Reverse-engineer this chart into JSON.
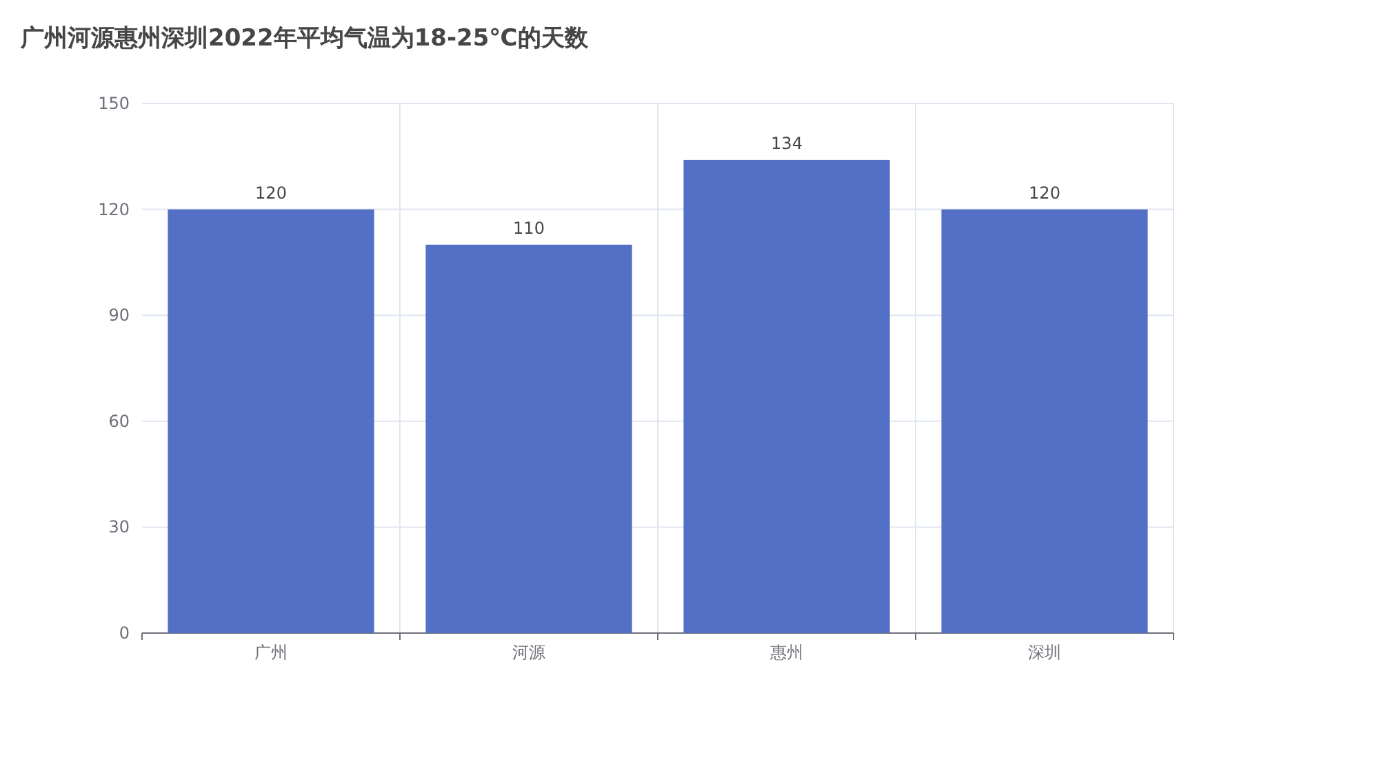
{
  "chart_data": {
    "type": "bar",
    "title": "广州河源惠州深圳2022年平均气温为18-25℃的天数",
    "categories": [
      "广州",
      "河源",
      "惠州",
      "深圳"
    ],
    "values": [
      120,
      110,
      134,
      120
    ],
    "color": "#5470c6",
    "ylim": [
      0,
      150
    ],
    "yticks": [
      0,
      30,
      60,
      90,
      120,
      150
    ],
    "grid": true,
    "data_labels": true
  }
}
